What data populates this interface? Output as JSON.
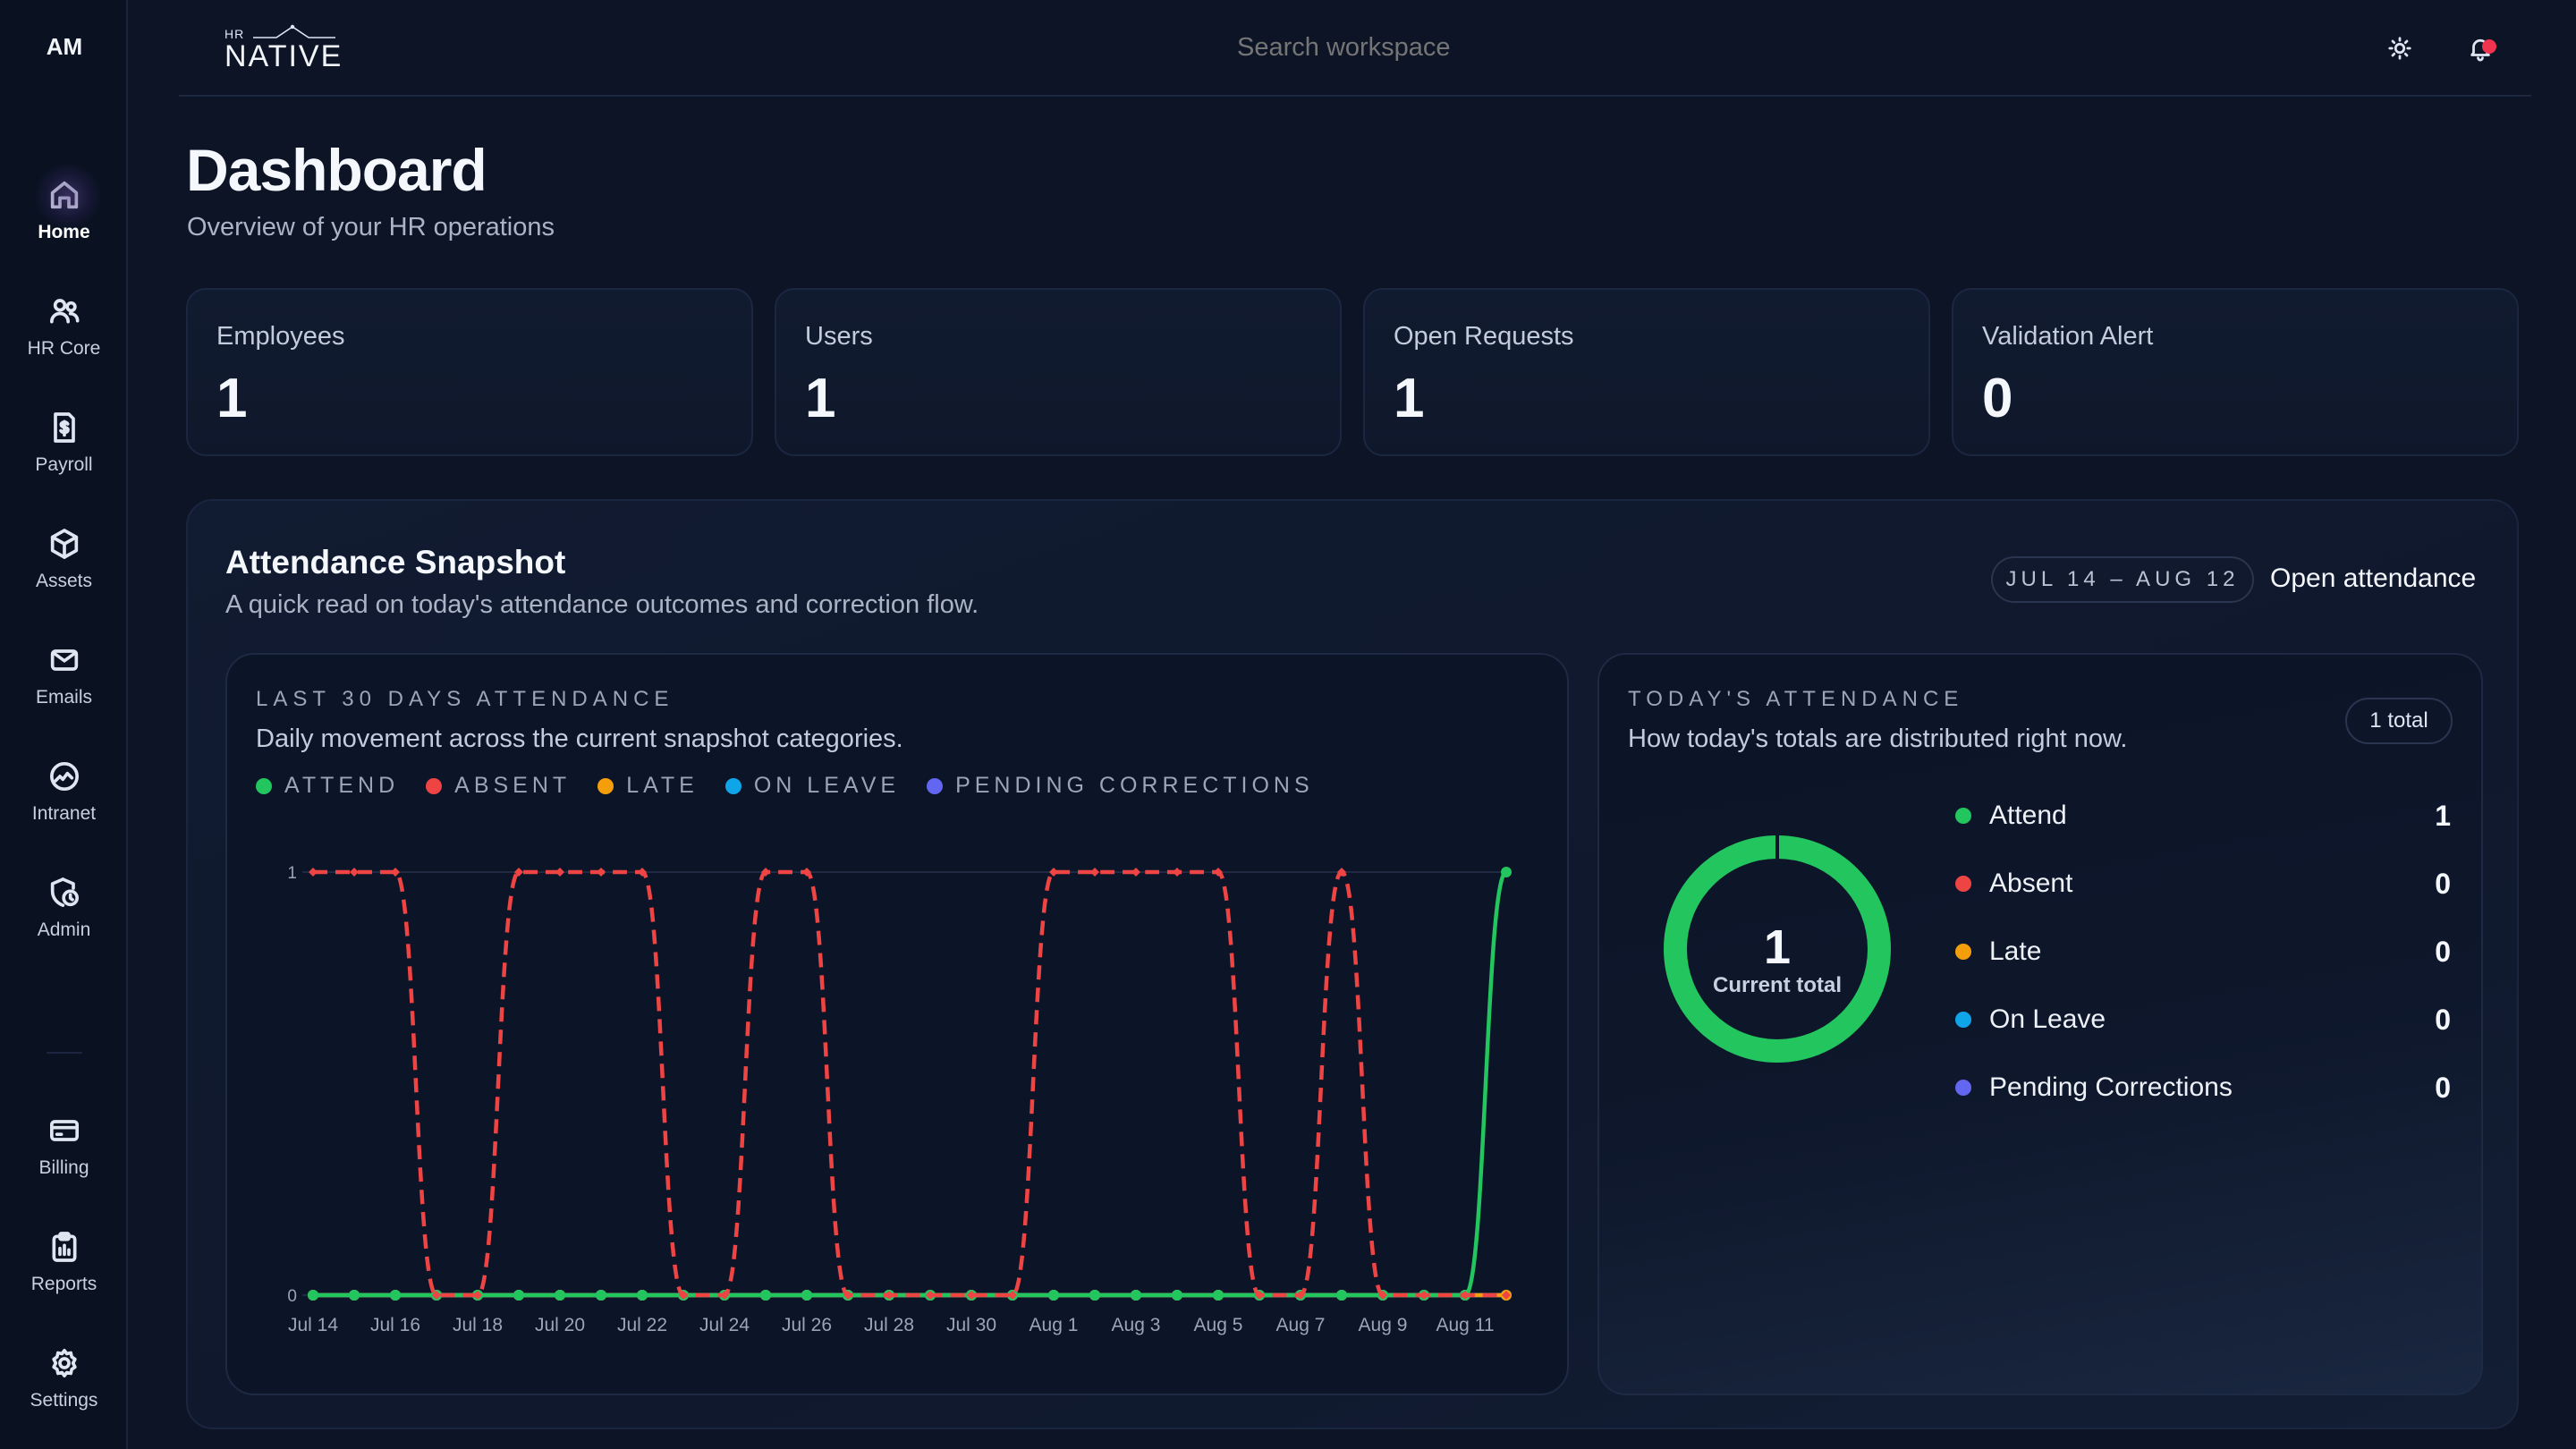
{
  "user": {
    "initials": "AM"
  },
  "brand": {
    "prefix": "HR",
    "name": "NATIVE"
  },
  "search": {
    "placeholder": "Search workspace"
  },
  "nav": {
    "items": [
      {
        "label": "Home",
        "icon": "home-icon"
      },
      {
        "label": "HR Core",
        "icon": "users-icon"
      },
      {
        "label": "Payroll",
        "icon": "payroll-icon"
      },
      {
        "label": "Assets",
        "icon": "box-icon"
      },
      {
        "label": "Emails",
        "icon": "mail-icon"
      },
      {
        "label": "Intranet",
        "icon": "globe-icon"
      },
      {
        "label": "Admin",
        "icon": "admin-icon"
      }
    ],
    "bottom": [
      {
        "label": "Billing",
        "icon": "card-icon"
      },
      {
        "label": "Reports",
        "icon": "clipboard-icon"
      },
      {
        "label": "Settings",
        "icon": "gear-icon"
      }
    ]
  },
  "page": {
    "title": "Dashboard",
    "subtitle": "Overview of your HR operations"
  },
  "stats": [
    {
      "label": "Employees",
      "value": "1"
    },
    {
      "label": "Users",
      "value": "1"
    },
    {
      "label": "Open Requests",
      "value": "1"
    },
    {
      "label": "Validation Alert",
      "value": "0"
    }
  ],
  "snapshot": {
    "title": "Attendance Snapshot",
    "subtitle": "A quick read on today's attendance outcomes and correction flow.",
    "range": "JUL 14 – AUG 12",
    "open_link": "Open attendance"
  },
  "trend": {
    "kicker": "LAST 30 DAYS ATTENDANCE",
    "description": "Daily movement across the current snapshot categories.",
    "legend": [
      {
        "label": "ATTEND",
        "color": "#22c55e"
      },
      {
        "label": "ABSENT",
        "color": "#ef4444"
      },
      {
        "label": "LATE",
        "color": "#f59e0b"
      },
      {
        "label": "ON LEAVE",
        "color": "#0ea5e9"
      },
      {
        "label": "PENDING CORRECTIONS",
        "color": "#6366f1"
      }
    ]
  },
  "chart_data": {
    "type": "line",
    "x": [
      "Jul 14",
      "Jul 15",
      "Jul 16",
      "Jul 17",
      "Jul 18",
      "Jul 19",
      "Jul 20",
      "Jul 21",
      "Jul 22",
      "Jul 23",
      "Jul 24",
      "Jul 25",
      "Jul 26",
      "Jul 27",
      "Jul 28",
      "Jul 29",
      "Jul 30",
      "Jul 31",
      "Aug 1",
      "Aug 2",
      "Aug 3",
      "Aug 4",
      "Aug 5",
      "Aug 6",
      "Aug 7",
      "Aug 8",
      "Aug 9",
      "Aug 10",
      "Aug 11",
      "Aug 12"
    ],
    "x_tick_labels": [
      "Jul 14",
      "Jul 16",
      "Jul 18",
      "Jul 20",
      "Jul 22",
      "Jul 24",
      "Jul 26",
      "Jul 28",
      "Jul 30",
      "Aug 1",
      "Aug 3",
      "Aug 5",
      "Aug 7",
      "Aug 9",
      "Aug 11"
    ],
    "y_ticks": [
      0,
      1
    ],
    "ylim": [
      0,
      1
    ],
    "series": [
      {
        "name": "ATTEND",
        "color": "#22c55e",
        "dashed": false,
        "values": [
          0,
          0,
          0,
          0,
          0,
          0,
          0,
          0,
          0,
          0,
          0,
          0,
          0,
          0,
          0,
          0,
          0,
          0,
          0,
          0,
          0,
          0,
          0,
          0,
          0,
          0,
          0,
          0,
          0,
          1
        ]
      },
      {
        "name": "ABSENT",
        "color": "#ef4444",
        "dashed": true,
        "values": [
          1,
          1,
          1,
          0,
          0,
          1,
          1,
          1,
          1,
          0,
          0,
          1,
          1,
          0,
          0,
          0,
          0,
          0,
          1,
          1,
          1,
          1,
          1,
          0,
          0,
          1,
          0,
          0,
          0,
          0
        ]
      },
      {
        "name": "LATE",
        "color": "#f59e0b",
        "dashed": false,
        "values": [
          0,
          0,
          0,
          0,
          0,
          0,
          0,
          0,
          0,
          0,
          0,
          0,
          0,
          0,
          0,
          0,
          0,
          0,
          0,
          0,
          0,
          0,
          0,
          0,
          0,
          0,
          0,
          0,
          0,
          0
        ]
      },
      {
        "name": "ON LEAVE",
        "color": "#0ea5e9",
        "dashed": false,
        "values": [
          0,
          0,
          0,
          0,
          0,
          0,
          0,
          0,
          0,
          0,
          0,
          0,
          0,
          0,
          0,
          0,
          0,
          0,
          0,
          0,
          0,
          0,
          0,
          0,
          0,
          0,
          0,
          0,
          0,
          0
        ]
      },
      {
        "name": "PENDING CORRECTIONS",
        "color": "#6366f1",
        "dashed": false,
        "values": [
          0,
          0,
          0,
          0,
          0,
          0,
          0,
          0,
          0,
          0,
          0,
          0,
          0,
          0,
          0,
          0,
          0,
          0,
          0,
          0,
          0,
          0,
          0,
          0,
          0,
          0,
          0,
          0,
          0,
          0
        ]
      }
    ]
  },
  "today": {
    "kicker": "TODAY'S ATTENDANCE",
    "description": "How today's totals are distributed right now.",
    "total_label": "1 total",
    "donut_value": "1",
    "donut_caption": "Current total",
    "rows": [
      {
        "label": "Attend",
        "value": "1",
        "color": "#22c55e"
      },
      {
        "label": "Absent",
        "value": "0",
        "color": "#ef4444"
      },
      {
        "label": "Late",
        "value": "0",
        "color": "#f59e0b"
      },
      {
        "label": "On Leave",
        "value": "0",
        "color": "#0ea5e9"
      },
      {
        "label": "Pending Corrections",
        "value": "0",
        "color": "#6366f1"
      }
    ]
  }
}
